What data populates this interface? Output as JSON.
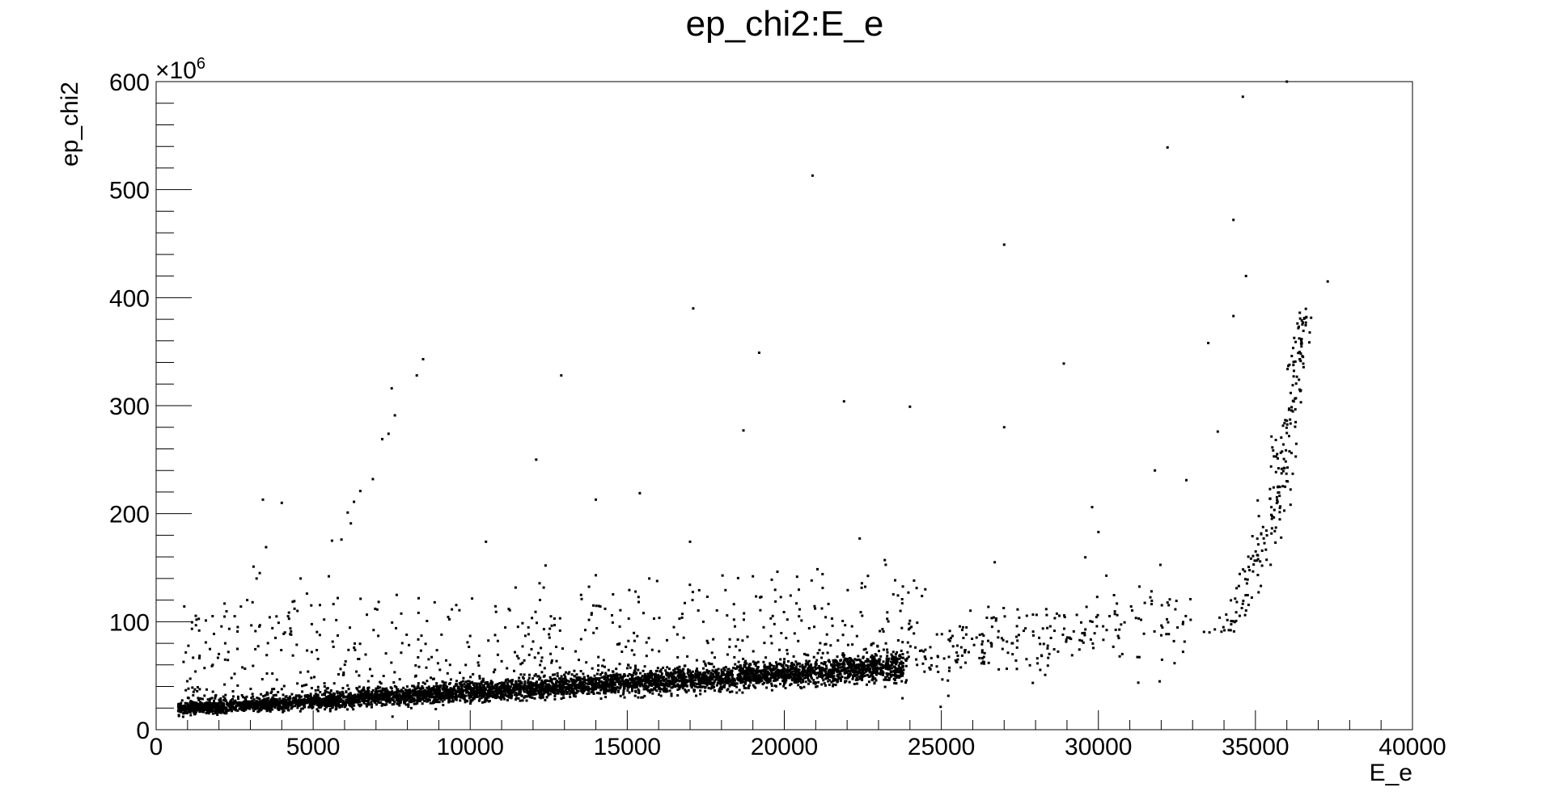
{
  "chart_data": {
    "type": "scatter",
    "title": "ep_chi2:E_e",
    "xlabel": "E_e",
    "ylabel": "ep_chi2",
    "y_multiplier_label": "×10",
    "y_multiplier_exponent": "6",
    "xlim": [
      0,
      40000
    ],
    "ylim": [
      0,
      600
    ],
    "x_ticks": [
      "0",
      "5000",
      "10000",
      "15000",
      "20000",
      "25000",
      "30000",
      "35000",
      "40000"
    ],
    "y_ticks": [
      "0",
      "100",
      "200",
      "300",
      "400",
      "500",
      "600"
    ],
    "marker_color": "#000000",
    "grid": false,
    "legend": "none",
    "band": {
      "description": "dense band of points",
      "x_range": [
        700,
        23800
      ],
      "y_center_start": 19,
      "y_center_end": 58,
      "count": 5200
    },
    "band_upper_tail": {
      "x_range": [
        800,
        24500
      ],
      "count": 650
    },
    "high_tail_region": {
      "x_range": [
        23500,
        33000
      ],
      "count": 260
    },
    "steep_rise_region": {
      "x_range": [
        33000,
        36800
      ],
      "count": 220
    },
    "outliers": [
      [
        8500,
        343
      ],
      [
        8300,
        328
      ],
      [
        7500,
        316
      ],
      [
        7600,
        291
      ],
      [
        7400,
        274
      ],
      [
        7200,
        269
      ],
      [
        6900,
        232
      ],
      [
        6500,
        221
      ],
      [
        6300,
        211
      ],
      [
        6100,
        201
      ],
      [
        6200,
        191
      ],
      [
        5900,
        176
      ],
      [
        5600,
        175
      ],
      [
        5500,
        142
      ],
      [
        3400,
        213
      ],
      [
        4000,
        210
      ],
      [
        3500,
        169
      ],
      [
        3100,
        151
      ],
      [
        3300,
        145
      ],
      [
        3200,
        140
      ],
      [
        4600,
        140
      ],
      [
        4800,
        126
      ],
      [
        4400,
        119
      ],
      [
        4500,
        110
      ],
      [
        4200,
        105
      ],
      [
        3900,
        99
      ],
      [
        3700,
        94
      ],
      [
        4100,
        90
      ],
      [
        3800,
        85
      ],
      [
        4300,
        88
      ],
      [
        2700,
        114
      ],
      [
        2500,
        105
      ],
      [
        2200,
        80
      ],
      [
        2000,
        70
      ],
      [
        1800,
        60
      ],
      [
        2300,
        72
      ],
      [
        2600,
        95
      ],
      [
        2900,
        120
      ],
      [
        17100,
        390
      ],
      [
        19200,
        349
      ],
      [
        20900,
        513
      ],
      [
        21900,
        304
      ],
      [
        24000,
        299
      ],
      [
        12900,
        328
      ],
      [
        12100,
        250
      ],
      [
        18700,
        277
      ],
      [
        14000,
        213
      ],
      [
        15400,
        219
      ],
      [
        17000,
        174
      ],
      [
        10500,
        174
      ],
      [
        22400,
        177
      ],
      [
        27000,
        449
      ],
      [
        27000,
        280
      ],
      [
        28900,
        339
      ],
      [
        29800,
        206
      ],
      [
        30000,
        183
      ],
      [
        31800,
        240
      ],
      [
        32800,
        231
      ],
      [
        34300,
        472
      ],
      [
        34700,
        420
      ],
      [
        32200,
        539
      ],
      [
        36000,
        600
      ],
      [
        34600,
        586
      ],
      [
        37300,
        415
      ],
      [
        33500,
        358
      ],
      [
        34300,
        383
      ],
      [
        33800,
        276
      ],
      [
        12400,
        152
      ],
      [
        19000,
        142
      ],
      [
        14000,
        143
      ],
      [
        15700,
        140
      ],
      [
        23200,
        157
      ],
      [
        26700,
        155
      ]
    ]
  }
}
